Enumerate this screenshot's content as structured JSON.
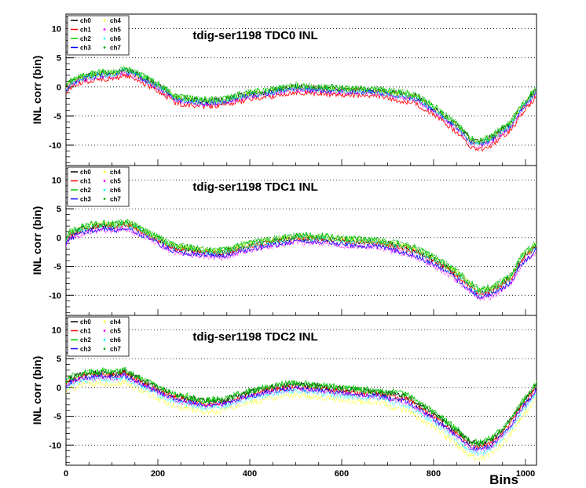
{
  "chart_data": [
    {
      "type": "line",
      "title": "tdig-ser1198 TDC0 INL",
      "ylabel": "INL corr (bin)",
      "xlabel": "",
      "xlim": [
        0,
        1024
      ],
      "ylim": [
        -13.5,
        12.5
      ],
      "y_ticks": [
        -10,
        -5,
        0,
        5,
        10
      ],
      "y_tick_labels": [
        "-10",
        "-5",
        "0",
        "5",
        "10"
      ],
      "grid": "horizontal dotted",
      "legend": "top-left",
      "series": [
        {
          "name": "ch0",
          "color": "#000000",
          "marker": "line",
          "offset": 0.3,
          "noise": 0.5
        },
        {
          "name": "ch1",
          "color": "#ff0000",
          "marker": "line",
          "offset": -0.6,
          "noise": 0.45
        },
        {
          "name": "ch2",
          "color": "#00cc00",
          "marker": "line",
          "offset": 0.5,
          "noise": 0.6
        },
        {
          "name": "ch3",
          "color": "#0000ff",
          "marker": "line",
          "offset": 0.0,
          "noise": 0.45
        },
        {
          "name": "ch4",
          "color": "#ffff00",
          "marker": "dot",
          "offset": 0.2,
          "noise": 0.5
        },
        {
          "name": "ch5",
          "color": "#ff00ff",
          "marker": "dot",
          "offset": -0.2,
          "noise": 0.45
        },
        {
          "name": "ch6",
          "color": "#00ffff",
          "marker": "dot",
          "offset": 0.1,
          "noise": 0.5
        },
        {
          "name": "ch7",
          "color": "#00aa00",
          "marker": "dot",
          "offset": 0.6,
          "noise": 0.55
        }
      ],
      "curve": {
        "x": [
          0,
          10,
          40,
          80,
          110,
          125,
          150,
          200,
          240,
          300,
          340,
          400,
          450,
          500,
          560,
          620,
          680,
          740,
          760,
          800,
          850,
          880,
          900,
          930,
          970,
          990,
          1024
        ],
        "y": [
          -0.5,
          0.5,
          1.5,
          2.0,
          2.0,
          2.7,
          2.0,
          0.0,
          -2.2,
          -2.8,
          -2.6,
          -1.5,
          -1.0,
          -0.3,
          -0.6,
          -0.8,
          -1.0,
          -1.8,
          -2.0,
          -4.0,
          -7.0,
          -9.5,
          -10.0,
          -9.0,
          -6.5,
          -4.0,
          -0.8
        ]
      }
    },
    {
      "type": "line",
      "title": "tdig-ser1198 TDC1 INL",
      "ylabel": "INL corr (bin)",
      "xlabel": "",
      "xlim": [
        0,
        1024
      ],
      "ylim": [
        -13.5,
        12.5
      ],
      "y_ticks": [
        -10,
        -5,
        0,
        5,
        10
      ],
      "y_tick_labels": [
        "-10",
        "-5",
        "0",
        "5",
        "10"
      ],
      "grid": "horizontal dotted",
      "legend": "top-left",
      "series": [
        {
          "name": "ch0",
          "color": "#000000",
          "marker": "line",
          "offset": 0.2,
          "noise": 0.5
        },
        {
          "name": "ch1",
          "color": "#ff0000",
          "marker": "line",
          "offset": 0.0,
          "noise": 0.45
        },
        {
          "name": "ch2",
          "color": "#00cc00",
          "marker": "line",
          "offset": 0.5,
          "noise": 0.6
        },
        {
          "name": "ch3",
          "color": "#0000ff",
          "marker": "line",
          "offset": -0.5,
          "noise": 0.45
        },
        {
          "name": "ch4",
          "color": "#ffff00",
          "marker": "dot",
          "offset": 0.3,
          "noise": 0.5
        },
        {
          "name": "ch5",
          "color": "#ff00ff",
          "marker": "dot",
          "offset": -0.7,
          "noise": 0.5
        },
        {
          "name": "ch6",
          "color": "#00ffff",
          "marker": "dot",
          "offset": 0.1,
          "noise": 0.5
        },
        {
          "name": "ch7",
          "color": "#00aa00",
          "marker": "dot",
          "offset": 0.6,
          "noise": 0.55
        }
      ],
      "curve": {
        "x": [
          0,
          10,
          40,
          80,
          110,
          125,
          150,
          200,
          240,
          300,
          340,
          400,
          450,
          500,
          560,
          620,
          680,
          740,
          760,
          800,
          850,
          880,
          900,
          930,
          970,
          990,
          1024
        ],
        "y": [
          -0.5,
          0.5,
          1.5,
          2.0,
          1.8,
          2.3,
          1.6,
          -0.5,
          -2.0,
          -2.5,
          -2.8,
          -1.5,
          -0.8,
          -0.2,
          -0.3,
          -0.8,
          -1.0,
          -2.0,
          -2.5,
          -4.0,
          -6.5,
          -8.5,
          -9.8,
          -9.3,
          -7.0,
          -4.0,
          -1.5
        ]
      }
    },
    {
      "type": "line",
      "title": "tdig-ser1198 TDC2 INL",
      "ylabel": "INL corr (bin)",
      "xlabel": "Bins",
      "xlim": [
        0,
        1024
      ],
      "ylim": [
        -13.5,
        12.5
      ],
      "x_ticks": [
        0,
        200,
        400,
        600,
        800,
        1000
      ],
      "x_tick_labels": [
        "0",
        "200",
        "400",
        "600",
        "800",
        "1000"
      ],
      "y_ticks": [
        -10,
        -5,
        0,
        5,
        10
      ],
      "y_tick_labels": [
        "-10",
        "-5",
        "0",
        "5",
        "10"
      ],
      "grid": "horizontal dotted",
      "legend": "top-left",
      "series": [
        {
          "name": "ch0",
          "color": "#000000",
          "marker": "line",
          "offset": 0.4,
          "noise": 0.5
        },
        {
          "name": "ch1",
          "color": "#ff0000",
          "marker": "line",
          "offset": 0.0,
          "noise": 0.45
        },
        {
          "name": "ch2",
          "color": "#00cc00",
          "marker": "line",
          "offset": 0.6,
          "noise": 0.6
        },
        {
          "name": "ch3",
          "color": "#0000ff",
          "marker": "line",
          "offset": -0.3,
          "noise": 0.45
        },
        {
          "name": "ch4",
          "color": "#ffff00",
          "marker": "dot",
          "offset": -1.5,
          "noise": 0.55
        },
        {
          "name": "ch5",
          "color": "#ff00ff",
          "marker": "dot",
          "offset": -0.5,
          "noise": 0.45
        },
        {
          "name": "ch6",
          "color": "#00ffff",
          "marker": "dot",
          "offset": -0.8,
          "noise": 0.5
        },
        {
          "name": "ch7",
          "color": "#00aa00",
          "marker": "dot",
          "offset": 0.5,
          "noise": 0.55
        }
      ],
      "curve": {
        "x": [
          0,
          10,
          40,
          80,
          110,
          125,
          150,
          200,
          240,
          300,
          340,
          400,
          450,
          500,
          560,
          620,
          680,
          740,
          760,
          800,
          850,
          880,
          900,
          930,
          970,
          990,
          1024
        ],
        "y": [
          0.5,
          1.2,
          2.0,
          2.2,
          2.0,
          2.5,
          1.5,
          -0.5,
          -1.8,
          -2.8,
          -2.6,
          -1.2,
          -0.3,
          0.2,
          -0.3,
          -0.8,
          -1.2,
          -2.0,
          -3.0,
          -5.0,
          -8.0,
          -10.0,
          -10.5,
          -9.5,
          -6.0,
          -3.5,
          0.0
        ]
      }
    }
  ]
}
